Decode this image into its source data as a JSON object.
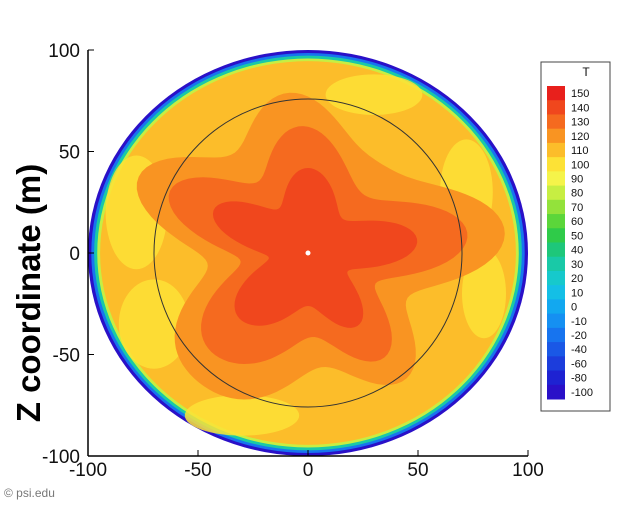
{
  "chart_data": {
    "type": "heatmap",
    "title": "",
    "xlabel": "",
    "ylabel": "Z coordinate (m)",
    "xlim": [
      -100,
      100
    ],
    "ylim": [
      -100,
      100
    ],
    "x_ticks": [
      -100,
      -50,
      0,
      50,
      100
    ],
    "y_ticks": [
      100,
      50,
      0,
      -50,
      -100
    ],
    "grid": false,
    "legend": {
      "title": "T",
      "placement": "right",
      "levels": [
        {
          "value": 150,
          "color": "#e8201c"
        },
        {
          "value": 140,
          "color": "#f0471d"
        },
        {
          "value": 130,
          "color": "#f56a1f"
        },
        {
          "value": 120,
          "color": "#f99422"
        },
        {
          "value": 110,
          "color": "#fcbd2a"
        },
        {
          "value": 100,
          "color": "#fde236"
        },
        {
          "value": 90,
          "color": "#f5f44a"
        },
        {
          "value": 80,
          "color": "#c7ee42"
        },
        {
          "value": 70,
          "color": "#93e23b"
        },
        {
          "value": 60,
          "color": "#5bd63a"
        },
        {
          "value": 50,
          "color": "#2fcb49"
        },
        {
          "value": 40,
          "color": "#1ec77a"
        },
        {
          "value": 30,
          "color": "#19c9a7"
        },
        {
          "value": 20,
          "color": "#16c9cc"
        },
        {
          "value": 10,
          "color": "#14bfe6"
        },
        {
          "value": 0,
          "color": "#12a8f0"
        },
        {
          "value": -10,
          "color": "#1590f2"
        },
        {
          "value": -20,
          "color": "#1774ef"
        },
        {
          "value": -40,
          "color": "#1a58e6"
        },
        {
          "value": -60,
          "color": "#1c3ddc"
        },
        {
          "value": -80,
          "color": "#1e22d2"
        },
        {
          "value": -100,
          "color": "#2a10c8"
        }
      ]
    },
    "field": {
      "outer_radius": 100,
      "rim_temperatures": [
        -100,
        -20,
        30,
        80
      ],
      "bulk_temperature": 110,
      "contour_levels": [
        120,
        130,
        140
      ],
      "reference_circle_radius": 70,
      "center_marker": [
        0,
        0
      ]
    }
  },
  "credit": "© psi.edu"
}
